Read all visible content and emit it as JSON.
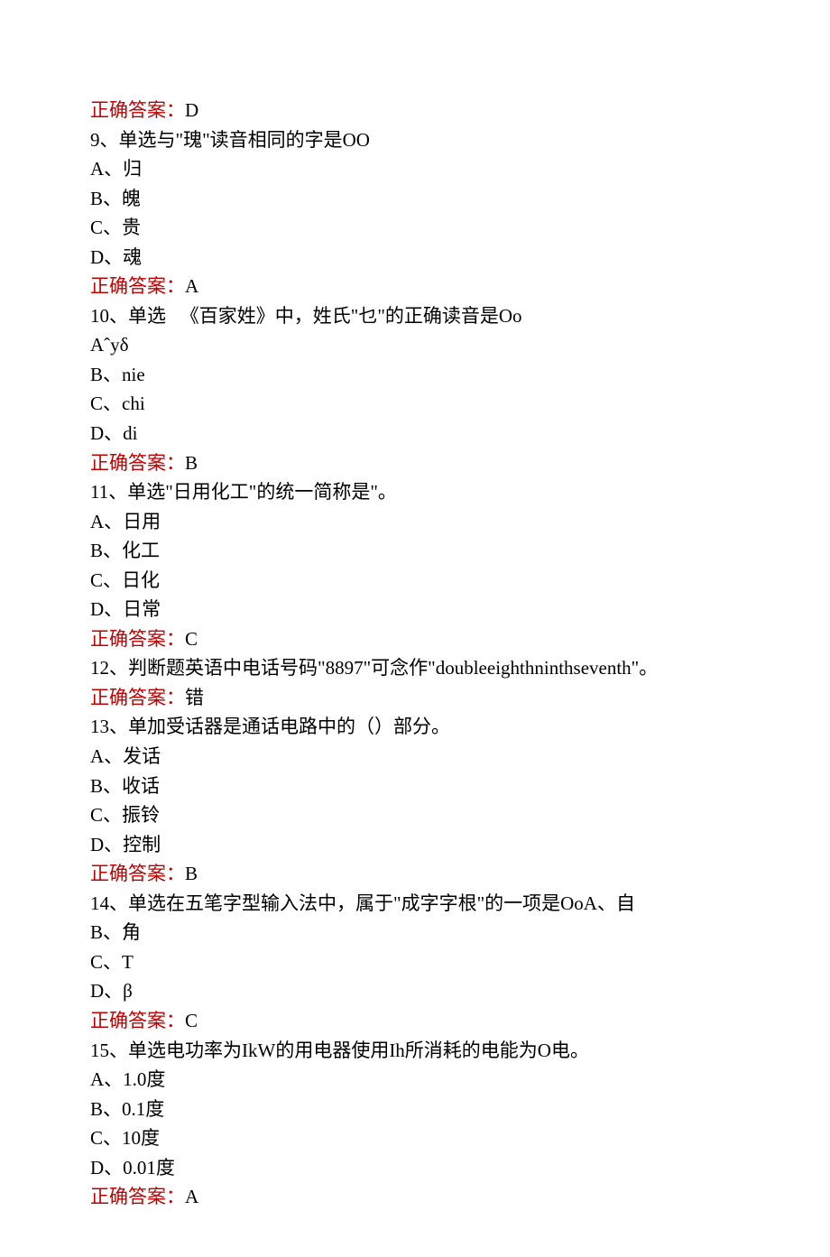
{
  "answer_label": "正确答案：",
  "colors": {
    "answer_label": "#c00000",
    "text": "#000000",
    "background": "#ffffff"
  },
  "q8_answer": "D",
  "q9": {
    "prompt": "9、单选与\"瑰\"读音相同的字是OO",
    "optA": "A、归",
    "optB": "B、魄",
    "optC": "C、贵",
    "optD": "D、魂",
    "answer": "A"
  },
  "q10": {
    "prompt": "10、单选   《百家姓》中，姓氏\"乜\"的正确读音是Oo",
    "optA": "Aˆyδ",
    "optB": "B、nie",
    "optC": "C、chi",
    "optD": "D、di",
    "answer": "B"
  },
  "q11": {
    "prompt": "11、单选\"日用化工\"的统一简称是\"。",
    "optA": "A、日用",
    "optB": "B、化工",
    "optC": "C、日化",
    "optD": "D、日常",
    "answer": "C"
  },
  "q12": {
    "prompt": "12、判断题英语中电话号码\"8897\"可念作\"doubleeighthninthseventh\"。",
    "answer": "错"
  },
  "q13": {
    "prompt": "13、单加受话器是通话电路中的（）部分。",
    "optA": "A、发话",
    "optB": "B、收话",
    "optC": "C、振铃",
    "optD": "D、控制",
    "answer": "B"
  },
  "q14": {
    "prompt": "14、单选在五笔字型输入法中，属于\"成字字根\"的一项是OoA、自",
    "optB": "B、角",
    "optC": "C、T",
    "optD": "D、β",
    "answer": "C"
  },
  "q15": {
    "prompt": "15、单选电功率为IkW的用电器使用Ih所消耗的电能为O电。",
    "optA": "A、1.0度",
    "optB": "B、0.1度",
    "optC": "C、10度",
    "optD": "D、0.01度",
    "answer": "A"
  }
}
